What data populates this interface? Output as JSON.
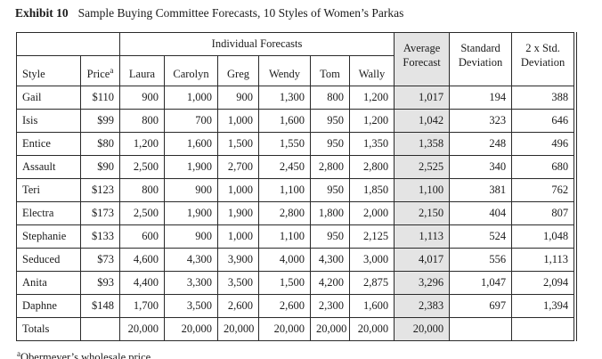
{
  "title": {
    "label": "Exhibit 10",
    "caption": "Sample Buying Committee Forecasts, 10 Styles of Women’s Parkas"
  },
  "colors": {
    "average_column_shade": "#e4e4e4",
    "border": "#2a2a2a",
    "text": "#1b1b1b",
    "background": "#ffffff"
  },
  "table": {
    "header": {
      "individual_forecasts": "Individual Forecasts",
      "style": "Style",
      "price": "Price",
      "price_superscript": "a",
      "forecasters": [
        "Laura",
        "Carolyn",
        "Greg",
        "Wendy",
        "Tom",
        "Wally"
      ],
      "average_forecast": "Average Forecast",
      "standard_deviation": "Standard Deviation",
      "two_std_deviation": "2 x Std. Deviation"
    },
    "rows": [
      {
        "style": "Gail",
        "price": "$110",
        "forecasts": [
          "900",
          "1,000",
          "900",
          "1,300",
          "800",
          "1,200"
        ],
        "average": "1,017",
        "std_dev": "194",
        "two_std_dev": "388"
      },
      {
        "style": "Isis",
        "price": "$99",
        "forecasts": [
          "800",
          "700",
          "1,000",
          "1,600",
          "950",
          "1,200"
        ],
        "average": "1,042",
        "std_dev": "323",
        "two_std_dev": "646"
      },
      {
        "style": "Entice",
        "price": "$80",
        "forecasts": [
          "1,200",
          "1,600",
          "1,500",
          "1,550",
          "950",
          "1,350"
        ],
        "average": "1,358",
        "std_dev": "248",
        "two_std_dev": "496"
      },
      {
        "style": "Assault",
        "price": "$90",
        "forecasts": [
          "2,500",
          "1,900",
          "2,700",
          "2,450",
          "2,800",
          "2,800"
        ],
        "average": "2,525",
        "std_dev": "340",
        "two_std_dev": "680"
      },
      {
        "style": "Teri",
        "price": "$123",
        "forecasts": [
          "800",
          "900",
          "1,000",
          "1,100",
          "950",
          "1,850"
        ],
        "average": "1,100",
        "std_dev": "381",
        "two_std_dev": "762"
      },
      {
        "style": "Electra",
        "price": "$173",
        "forecasts": [
          "2,500",
          "1,900",
          "1,900",
          "2,800",
          "1,800",
          "2,000"
        ],
        "average": "2,150",
        "std_dev": "404",
        "two_std_dev": "807"
      },
      {
        "style": "Stephanie",
        "price": "$133",
        "forecasts": [
          "600",
          "900",
          "1,000",
          "1,100",
          "950",
          "2,125"
        ],
        "average": "1,113",
        "std_dev": "524",
        "two_std_dev": "1,048"
      },
      {
        "style": "Seduced",
        "price": "$73",
        "forecasts": [
          "4,600",
          "4,300",
          "3,900",
          "4,000",
          "4,300",
          "3,000"
        ],
        "average": "4,017",
        "std_dev": "556",
        "two_std_dev": "1,113"
      },
      {
        "style": "Anita",
        "price": "$93",
        "forecasts": [
          "4,400",
          "3,300",
          "3,500",
          "1,500",
          "4,200",
          "2,875"
        ],
        "average": "3,296",
        "std_dev": "1,047",
        "two_std_dev": "2,094"
      },
      {
        "style": "Daphne",
        "price": "$148",
        "forecasts": [
          "1,700",
          "3,500",
          "2,600",
          "2,600",
          "2,300",
          "1,600"
        ],
        "average": "2,383",
        "std_dev": "697",
        "two_std_dev": "1,394"
      }
    ],
    "totals": {
      "label": "Totals",
      "price": "",
      "forecasts": [
        "20,000",
        "20,000",
        "20,000",
        "20,000",
        "20,000",
        "20,000"
      ],
      "average": "20,000",
      "std_dev": "",
      "two_std_dev": ""
    }
  },
  "footnote": {
    "superscript": "a",
    "text": "Obermeyer’s wholesale price"
  }
}
